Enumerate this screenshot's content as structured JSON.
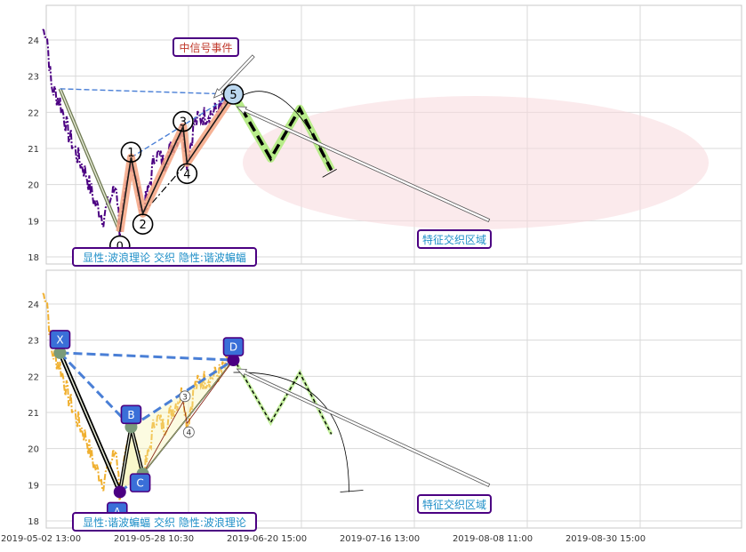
{
  "chart_data": [
    {
      "type": "line",
      "panel": "top",
      "ylim": [
        17.8,
        24.9
      ],
      "yticks": [
        18,
        19,
        20,
        21,
        22,
        23,
        24
      ],
      "grid": true,
      "annotations": {
        "box_event": "中信号事件",
        "box_region": "特征交织区域",
        "box_legend": "显性:波浪理论 交织 隐性:谐波蝙蝠"
      },
      "wave_points": [
        {
          "label": "0",
          "x": 17.8,
          "y": 18.7
        },
        {
          "label": "1",
          "x": 20.4,
          "y": 20.75
        },
        {
          "label": "2",
          "x": 23.1,
          "y": 19.2
        },
        {
          "label": "3",
          "x": 32.4,
          "y": 21.6
        },
        {
          "label": "4",
          "x": 33.3,
          "y": 20.6
        },
        {
          "label": "5",
          "x": 44.0,
          "y": 22.5
        }
      ],
      "projection": [
        {
          "x": 44.0,
          "y": 22.5
        },
        {
          "x": 52.6,
          "y": 20.72
        },
        {
          "x": 59.3,
          "y": 22.1
        },
        {
          "x": 66.6,
          "y": 20.4
        }
      ],
      "colors": {
        "price": "#4b0082",
        "wave": "#f4a582",
        "trend": "#4a7fd6",
        "projection_glow": "#b8ec8a"
      }
    },
    {
      "type": "line",
      "panel": "bottom",
      "ylim": [
        17.8,
        24.9
      ],
      "yticks": [
        18,
        19,
        20,
        21,
        22,
        23,
        24
      ],
      "xticks": [
        "2019-05-02 13:00",
        "2019-05-28 10:30",
        "2019-06-20 15:00",
        "2019-07-16 13:00",
        "2019-08-08 11:00",
        "2019-08-30 15:00"
      ],
      "grid": true,
      "annotations": {
        "box_region": "特征交织区域",
        "box_legend": "显性:谐波蝙蝠 交织 隐性:波浪理论"
      },
      "harmonic_points": [
        {
          "label": "X",
          "x": 4.0,
          "y": 22.65
        },
        {
          "label": "A",
          "x": 17.8,
          "y": 18.8
        },
        {
          "label": "B",
          "x": 20.4,
          "y": 20.6
        },
        {
          "label": "C",
          "x": 23.1,
          "y": 19.3
        },
        {
          "label": "D",
          "x": 44.0,
          "y": 22.45
        }
      ],
      "mini_waves": [
        {
          "label": "3",
          "x": 32.4,
          "y": 21.3
        },
        {
          "label": "4",
          "x": 33.3,
          "y": 20.7
        }
      ],
      "colors": {
        "price": "#f0b030",
        "harmonic": "#4a7fd6",
        "leg": "#000000"
      }
    }
  ]
}
